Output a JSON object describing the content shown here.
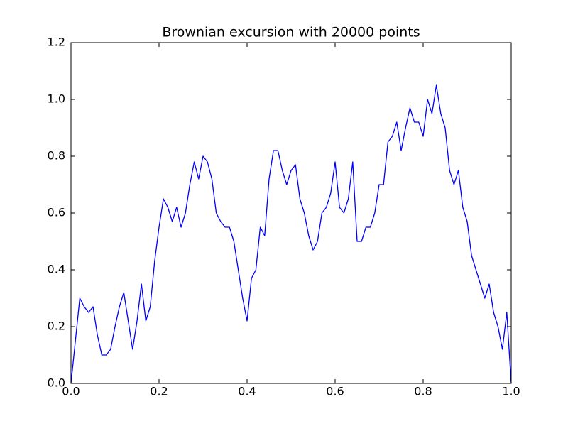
{
  "chart_data": {
    "type": "line",
    "title": "Brownian excursion with 20000 points",
    "x": [
      0,
      0.01,
      0.02,
      0.03,
      0.04,
      0.05,
      0.06,
      0.07,
      0.08,
      0.09,
      0.1,
      0.11,
      0.12,
      0.13,
      0.14,
      0.15,
      0.16,
      0.17,
      0.18,
      0.19,
      0.2,
      0.21,
      0.22,
      0.23,
      0.24,
      0.25,
      0.26,
      0.27,
      0.28,
      0.29,
      0.3,
      0.31,
      0.32,
      0.33,
      0.34,
      0.35,
      0.36,
      0.37,
      0.38,
      0.39,
      0.4,
      0.41,
      0.42,
      0.43,
      0.44,
      0.45,
      0.46,
      0.47,
      0.48,
      0.49,
      0.5,
      0.51,
      0.52,
      0.53,
      0.54,
      0.55,
      0.56,
      0.57,
      0.58,
      0.59,
      0.6,
      0.61,
      0.62,
      0.63,
      0.64,
      0.65,
      0.66,
      0.67,
      0.68,
      0.69,
      0.7,
      0.71,
      0.72,
      0.73,
      0.74,
      0.75,
      0.76,
      0.77,
      0.78,
      0.79,
      0.8,
      0.81,
      0.82,
      0.83,
      0.84,
      0.85,
      0.86,
      0.87,
      0.88,
      0.89,
      0.9,
      0.91,
      0.92,
      0.93,
      0.94,
      0.95,
      0.96,
      0.97,
      0.98,
      0.99,
      1.0
    ],
    "series": [
      {
        "color": "#0000ff",
        "values": [
          0,
          0.15,
          0.3,
          0.27,
          0.25,
          0.27,
          0.17,
          0.1,
          0.1,
          0.12,
          0.2,
          0.27,
          0.32,
          0.22,
          0.12,
          0.22,
          0.35,
          0.22,
          0.27,
          0.43,
          0.55,
          0.65,
          0.62,
          0.57,
          0.62,
          0.55,
          0.6,
          0.7,
          0.78,
          0.72,
          0.8,
          0.78,
          0.72,
          0.6,
          0.57,
          0.55,
          0.55,
          0.5,
          0.4,
          0.3,
          0.22,
          0.37,
          0.4,
          0.55,
          0.52,
          0.72,
          0.82,
          0.82,
          0.75,
          0.7,
          0.75,
          0.77,
          0.65,
          0.6,
          0.52,
          0.47,
          0.5,
          0.6,
          0.62,
          0.67,
          0.78,
          0.62,
          0.6,
          0.65,
          0.78,
          0.5,
          0.5,
          0.55,
          0.55,
          0.6,
          0.7,
          0.7,
          0.85,
          0.87,
          0.92,
          0.82,
          0.9,
          0.97,
          0.92,
          0.92,
          0.87,
          1.0,
          0.95,
          1.05,
          0.95,
          0.9,
          0.75,
          0.7,
          0.75,
          0.62,
          0.57,
          0.45,
          0.4,
          0.35,
          0.3,
          0.35,
          0.25,
          0.2,
          0.12,
          0.25,
          0
        ]
      }
    ],
    "xlim": [
      0,
      1
    ],
    "ylim": [
      0,
      1.2
    ],
    "xticks": [
      {
        "value": 0,
        "label": "0.0"
      },
      {
        "value": 0.2,
        "label": "0.2"
      },
      {
        "value": 0.4,
        "label": "0.4"
      },
      {
        "value": 0.6,
        "label": "0.6"
      },
      {
        "value": 0.8,
        "label": "0.8"
      },
      {
        "value": 1,
        "label": "1.0"
      }
    ],
    "yticks": [
      {
        "value": 0,
        "label": "0.0"
      },
      {
        "value": 0.2,
        "label": "0.2"
      },
      {
        "value": 0.4,
        "label": "0.4"
      },
      {
        "value": 0.6,
        "label": "0.6"
      },
      {
        "value": 0.8,
        "label": "0.8"
      },
      {
        "value": 1,
        "label": "1.0"
      },
      {
        "value": 1.2,
        "label": "1.2"
      }
    ]
  }
}
